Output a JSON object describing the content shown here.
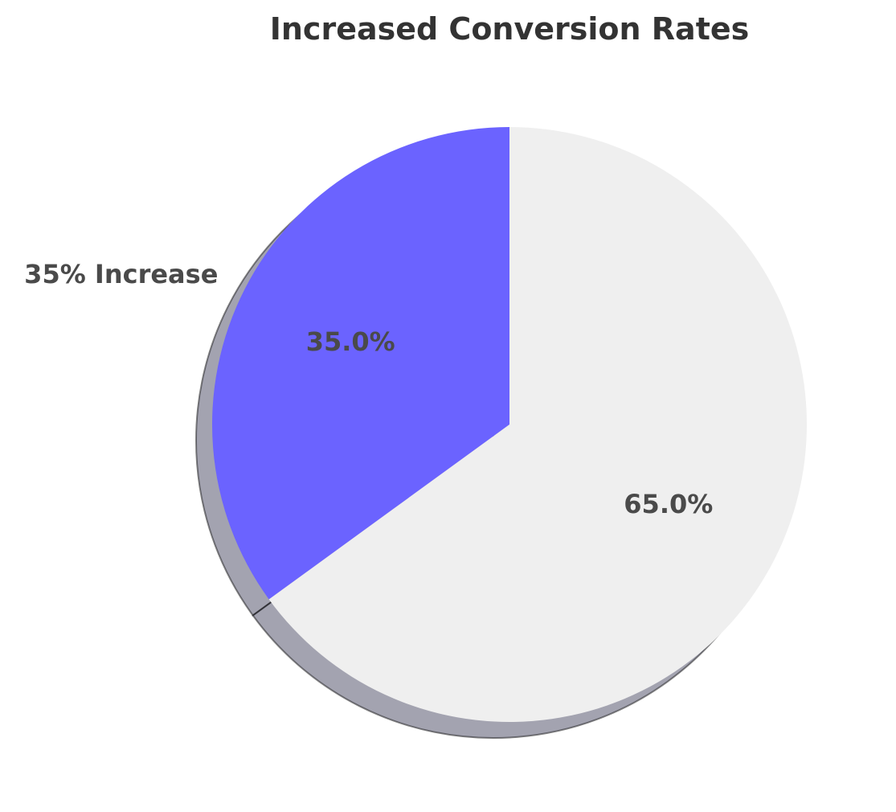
{
  "chart_data": {
    "type": "pie",
    "title": "Increased Conversion Rates",
    "categories": [
      "35% Increase",
      ""
    ],
    "values": [
      35,
      65
    ],
    "value_labels": [
      "35.0%",
      "65.0%"
    ],
    "colors": [
      "#6b63ff",
      "#efefef"
    ],
    "shadow": true,
    "start_angle_deg": 90,
    "direction": "counterclockwise",
    "legend": "none"
  }
}
